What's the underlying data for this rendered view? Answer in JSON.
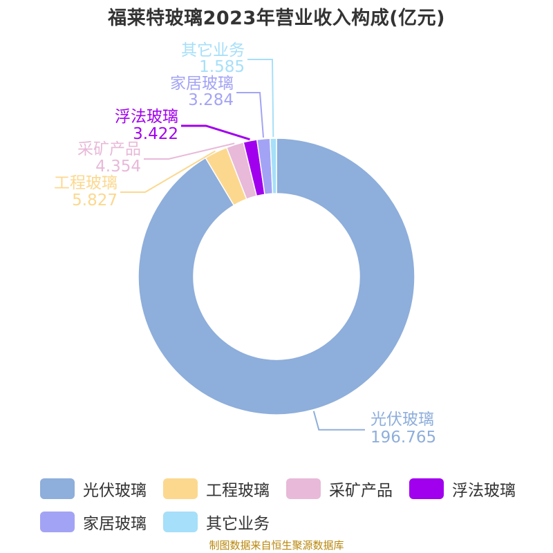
{
  "chart_data": {
    "type": "pie",
    "title": "福莱特玻璃2023年营业收入构成(亿元)",
    "categories": [
      "光伏玻璃",
      "工程玻璃",
      "采矿产品",
      "浮法玻璃",
      "家居玻璃",
      "其它业务"
    ],
    "values": [
      196.765,
      5.827,
      4.354,
      3.422,
      3.284,
      1.585
    ],
    "value_labels": [
      "196.765",
      "5.827",
      "4.354",
      "3.422",
      "3.284",
      "1.585"
    ],
    "colors": [
      "#8eaedb",
      "#fcd88f",
      "#e8b9d8",
      "#a100ee",
      "#a3a3f5",
      "#a6dff9"
    ],
    "donut": true,
    "legend_position": "bottom"
  },
  "source_note": "制图数据来自恒生聚源数据库"
}
